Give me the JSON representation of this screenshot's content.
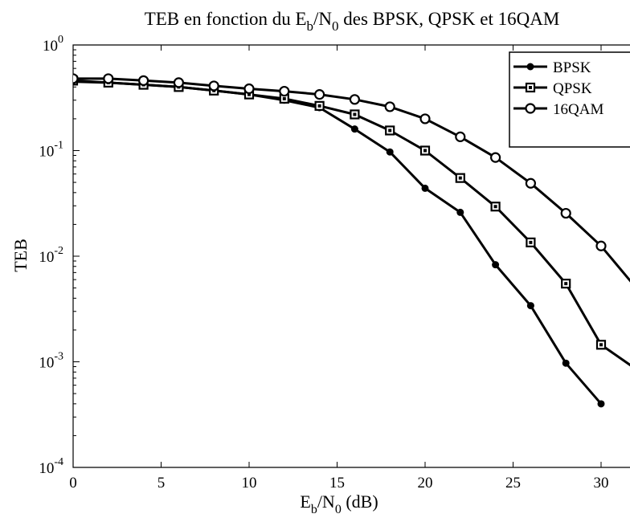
{
  "chart_data": {
    "type": "line",
    "title": {
      "prefix": "TEB en fonction du E",
      "sub1": "b",
      "mid": "/N",
      "sub2": "0",
      "suffix": " des BPSK, QPSK et 16QAM"
    },
    "xlabel": {
      "base1": "E",
      "sub1": "b",
      "mid": "/N",
      "sub2": "0",
      "suffix": " (dB)"
    },
    "ylabel": "TEB",
    "x_scale": "linear",
    "y_scale": "log",
    "xlim": [
      0,
      31
    ],
    "ylim": [
      0.0001,
      1
    ],
    "x_ticks": [
      {
        "value": 0,
        "label": "0"
      },
      {
        "value": 5,
        "label": "5"
      },
      {
        "value": 10,
        "label": "10"
      },
      {
        "value": 15,
        "label": "15"
      },
      {
        "value": 20,
        "label": "20"
      },
      {
        "value": 25,
        "label": "25"
      },
      {
        "value": 30,
        "label": "30"
      }
    ],
    "y_ticks": [
      {
        "value": 1,
        "base": "10",
        "exp": "0"
      },
      {
        "value": 0.1,
        "base": "10",
        "exp": "-1"
      },
      {
        "value": 0.01,
        "base": "10",
        "exp": "-2"
      },
      {
        "value": 0.001,
        "base": "10",
        "exp": "-3"
      },
      {
        "value": 0.0001,
        "base": "10",
        "exp": "-4"
      }
    ],
    "grid": false,
    "legend_position": "top-right",
    "series": [
      {
        "name": "BPSK",
        "marker": "dot",
        "x": [
          0,
          2,
          4,
          6,
          8,
          10,
          12,
          14,
          16,
          18,
          20,
          22,
          24,
          26,
          28,
          30
        ],
        "y": [
          0.45,
          0.44,
          0.42,
          0.4,
          0.37,
          0.34,
          0.3,
          0.255,
          0.16,
          0.097,
          0.044,
          0.026,
          0.0083,
          0.0034,
          0.00097,
          0.0004
        ]
      },
      {
        "name": "QPSK",
        "marker": "square",
        "x": [
          0,
          2,
          4,
          6,
          8,
          10,
          12,
          14,
          16,
          18,
          20,
          22,
          24,
          26,
          28,
          30,
          32
        ],
        "y": [
          0.46,
          0.44,
          0.42,
          0.4,
          0.37,
          0.34,
          0.31,
          0.265,
          0.22,
          0.155,
          0.1,
          0.055,
          0.0295,
          0.0135,
          0.0055,
          0.00145,
          0.00085
        ]
      },
      {
        "name": "16QAM",
        "marker": "circle",
        "x": [
          0,
          2,
          4,
          6,
          8,
          10,
          12,
          14,
          16,
          18,
          20,
          22,
          24,
          26,
          28,
          30,
          32
        ],
        "y": [
          0.48,
          0.48,
          0.46,
          0.44,
          0.41,
          0.385,
          0.365,
          0.34,
          0.305,
          0.26,
          0.2,
          0.135,
          0.086,
          0.049,
          0.0255,
          0.0125,
          0.005
        ]
      }
    ]
  }
}
